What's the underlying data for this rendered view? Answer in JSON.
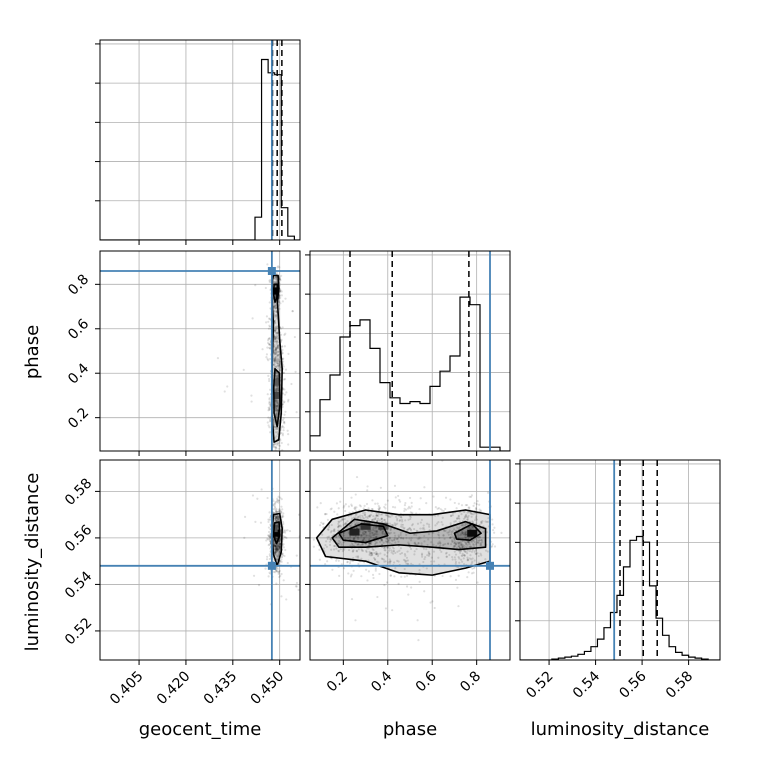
{
  "chart_data": {
    "type": "corner",
    "parameters": [
      "geocent_time",
      "phase",
      "luminosity_distance"
    ],
    "truth_color": "#4682b4",
    "truths": {
      "geocent_time": 0.4475,
      "phase": 0.86,
      "luminosity_distance": 0.548
    },
    "ranges": {
      "geocent_time": [
        0.3925,
        0.4565
      ],
      "phase": [
        0.05,
        0.95
      ],
      "luminosity_distance": [
        0.5075,
        0.5935
      ]
    },
    "ticks": {
      "geocent_time": [
        "0.405",
        "0.420",
        "0.435",
        "0.450"
      ],
      "phase": [
        "0.2",
        "0.4",
        "0.6",
        "0.8"
      ],
      "luminosity_distance": [
        "0.52",
        "0.54",
        "0.56",
        "0.58"
      ]
    },
    "grid": true,
    "histograms": {
      "geocent_time": {
        "edges": [
          0.3925,
          0.4421,
          0.4442,
          0.4463,
          0.4484,
          0.4505,
          0.4526,
          0.4547,
          0.4565
        ],
        "counts": [
          0,
          0.12,
          0.95,
          0.88,
          0.87,
          0.17,
          0.02,
          0
        ],
        "quantiles": [
          0.4477,
          0.4492,
          0.4507
        ]
      },
      "phase": {
        "edges": [
          0.05,
          0.095,
          0.14,
          0.185,
          0.23,
          0.275,
          0.32,
          0.365,
          0.41,
          0.455,
          0.5,
          0.545,
          0.59,
          0.635,
          0.68,
          0.725,
          0.77,
          0.815,
          0.86,
          0.905,
          0.95
        ],
        "counts": [
          0.08,
          0.27,
          0.4,
          0.6,
          0.66,
          0.69,
          0.54,
          0.36,
          0.28,
          0.25,
          0.26,
          0.25,
          0.34,
          0.42,
          0.5,
          0.81,
          0.77,
          0.02,
          0.02,
          0
        ],
        "quantiles": [
          0.23,
          0.42,
          0.765
        ]
      },
      "luminosity_distance": {
        "edges": [
          0.5075,
          0.51,
          0.5128,
          0.5156,
          0.5184,
          0.5212,
          0.524,
          0.5268,
          0.5296,
          0.5324,
          0.5352,
          0.538,
          0.5408,
          0.5436,
          0.5464,
          0.5492,
          0.552,
          0.5548,
          0.5576,
          0.5604,
          0.5632,
          0.566,
          0.5688,
          0.5716,
          0.5744,
          0.5772,
          0.58,
          0.5828,
          0.5856,
          0.5884,
          0.5935
        ],
        "counts": [
          0,
          0,
          0,
          0,
          0,
          0.005,
          0.01,
          0.015,
          0.02,
          0.03,
          0.045,
          0.07,
          0.11,
          0.17,
          0.25,
          0.34,
          0.49,
          0.63,
          0.65,
          0.62,
          0.39,
          0.22,
          0.13,
          0.07,
          0.04,
          0.025,
          0.015,
          0.01,
          0.005,
          0
        ],
        "quantiles": [
          0.5505,
          0.5605,
          0.5665
        ]
      }
    },
    "scatter_blobs": {
      "phase_vs_geocent_time": [
        {
          "cx": 0.4488,
          "cy": 0.76,
          "sx": 0.0008,
          "sy": 0.05,
          "n": 260
        },
        {
          "cx": 0.4492,
          "cy": 0.3,
          "sx": 0.0012,
          "sy": 0.14,
          "n": 520
        },
        {
          "cx": 0.4482,
          "cy": 0.55,
          "sx": 0.001,
          "sy": 0.08,
          "n": 160
        },
        {
          "cx": 0.449,
          "cy": 0.4,
          "sx": 0.006,
          "sy": 0.28,
          "n": 45
        }
      ],
      "luminosity_distance_vs_geocent_time": [
        {
          "cx": 0.449,
          "cy": 0.5605,
          "sx": 0.0011,
          "sy": 0.0065,
          "n": 760
        },
        {
          "cx": 0.449,
          "cy": 0.555,
          "sx": 0.005,
          "sy": 0.015,
          "n": 40
        }
      ],
      "luminosity_distance_vs_phase": [
        {
          "cx": 0.3,
          "cy": 0.562,
          "sx": 0.1,
          "sy": 0.007,
          "n": 650
        },
        {
          "cx": 0.76,
          "cy": 0.561,
          "sx": 0.05,
          "sy": 0.0065,
          "n": 420
        },
        {
          "cx": 0.52,
          "cy": 0.558,
          "sx": 0.12,
          "sy": 0.008,
          "n": 240
        },
        {
          "cx": 0.45,
          "cy": 0.555,
          "sx": 0.22,
          "sy": 0.015,
          "n": 80
        }
      ]
    },
    "contours": {
      "phase_vs_geocent_time": [
        [
          [
            0.448,
            0.84
          ],
          [
            0.4495,
            0.84
          ],
          [
            0.4497,
            0.78
          ],
          [
            0.4493,
            0.72
          ],
          [
            0.45,
            0.55
          ],
          [
            0.4508,
            0.42
          ],
          [
            0.4505,
            0.22
          ],
          [
            0.4497,
            0.1
          ],
          [
            0.4482,
            0.09
          ],
          [
            0.4475,
            0.22
          ],
          [
            0.4476,
            0.45
          ],
          [
            0.448,
            0.62
          ],
          [
            0.4475,
            0.75
          ],
          [
            0.4477,
            0.82
          ]
        ],
        [
          [
            0.4482,
            0.8
          ],
          [
            0.4493,
            0.8
          ],
          [
            0.4491,
            0.74
          ],
          [
            0.4485,
            0.72
          ],
          [
            0.4481,
            0.75
          ]
        ],
        [
          [
            0.4485,
            0.42
          ],
          [
            0.4499,
            0.4
          ],
          [
            0.4501,
            0.26
          ],
          [
            0.4492,
            0.16
          ],
          [
            0.4482,
            0.22
          ],
          [
            0.4481,
            0.34
          ]
        ]
      ],
      "luminosity_distance_vs_geocent_time": [
        [
          [
            0.448,
            0.57
          ],
          [
            0.45,
            0.5705
          ],
          [
            0.4508,
            0.564
          ],
          [
            0.4505,
            0.554
          ],
          [
            0.4492,
            0.548
          ],
          [
            0.448,
            0.553
          ],
          [
            0.4475,
            0.562
          ]
        ],
        [
          [
            0.4484,
            0.5665
          ],
          [
            0.4498,
            0.5668
          ],
          [
            0.45,
            0.561
          ],
          [
            0.449,
            0.5575
          ],
          [
            0.448,
            0.561
          ]
        ]
      ],
      "luminosity_distance_vs_phase": [
        [
          [
            0.08,
            0.56
          ],
          [
            0.15,
            0.568
          ],
          [
            0.3,
            0.572
          ],
          [
            0.45,
            0.57
          ],
          [
            0.6,
            0.57
          ],
          [
            0.75,
            0.572
          ],
          [
            0.86,
            0.57
          ],
          [
            0.86,
            0.55
          ],
          [
            0.75,
            0.547
          ],
          [
            0.6,
            0.544
          ],
          [
            0.45,
            0.545
          ],
          [
            0.3,
            0.55
          ],
          [
            0.12,
            0.552
          ]
        ],
        [
          [
            0.15,
            0.56
          ],
          [
            0.25,
            0.568
          ],
          [
            0.38,
            0.566
          ],
          [
            0.5,
            0.562
          ],
          [
            0.62,
            0.563
          ],
          [
            0.75,
            0.567
          ],
          [
            0.84,
            0.564
          ],
          [
            0.84,
            0.556
          ],
          [
            0.72,
            0.555
          ],
          [
            0.6,
            0.556
          ],
          [
            0.45,
            0.557
          ],
          [
            0.3,
            0.556
          ],
          [
            0.18,
            0.556
          ]
        ],
        [
          [
            0.18,
            0.562
          ],
          [
            0.28,
            0.566
          ],
          [
            0.38,
            0.565
          ],
          [
            0.4,
            0.561
          ],
          [
            0.3,
            0.558
          ],
          [
            0.2,
            0.559
          ]
        ],
        [
          [
            0.7,
            0.562
          ],
          [
            0.78,
            0.566
          ],
          [
            0.82,
            0.562
          ],
          [
            0.77,
            0.559
          ],
          [
            0.71,
            0.5595
          ]
        ]
      ]
    },
    "dense_cells": {
      "phase_vs_geocent_time": [
        {
          "x": 0.4487,
          "y": 0.77,
          "v": 1.0
        },
        {
          "x": 0.4492,
          "y": 0.3,
          "v": 0.5
        },
        {
          "x": 0.4492,
          "y": 0.36,
          "v": 0.35
        }
      ],
      "luminosity_distance_vs_geocent_time": [
        {
          "x": 0.449,
          "y": 0.562,
          "v": 1.0
        },
        {
          "x": 0.4484,
          "y": 0.564,
          "v": 0.5
        }
      ],
      "luminosity_distance_vs_phase": [
        {
          "x": 0.3,
          "y": 0.565,
          "v": 0.55
        },
        {
          "x": 0.25,
          "y": 0.5625,
          "v": 0.7
        },
        {
          "x": 0.78,
          "y": 0.562,
          "v": 0.9
        },
        {
          "x": 0.38,
          "y": 0.565,
          "v": 0.45
        }
      ]
    }
  }
}
